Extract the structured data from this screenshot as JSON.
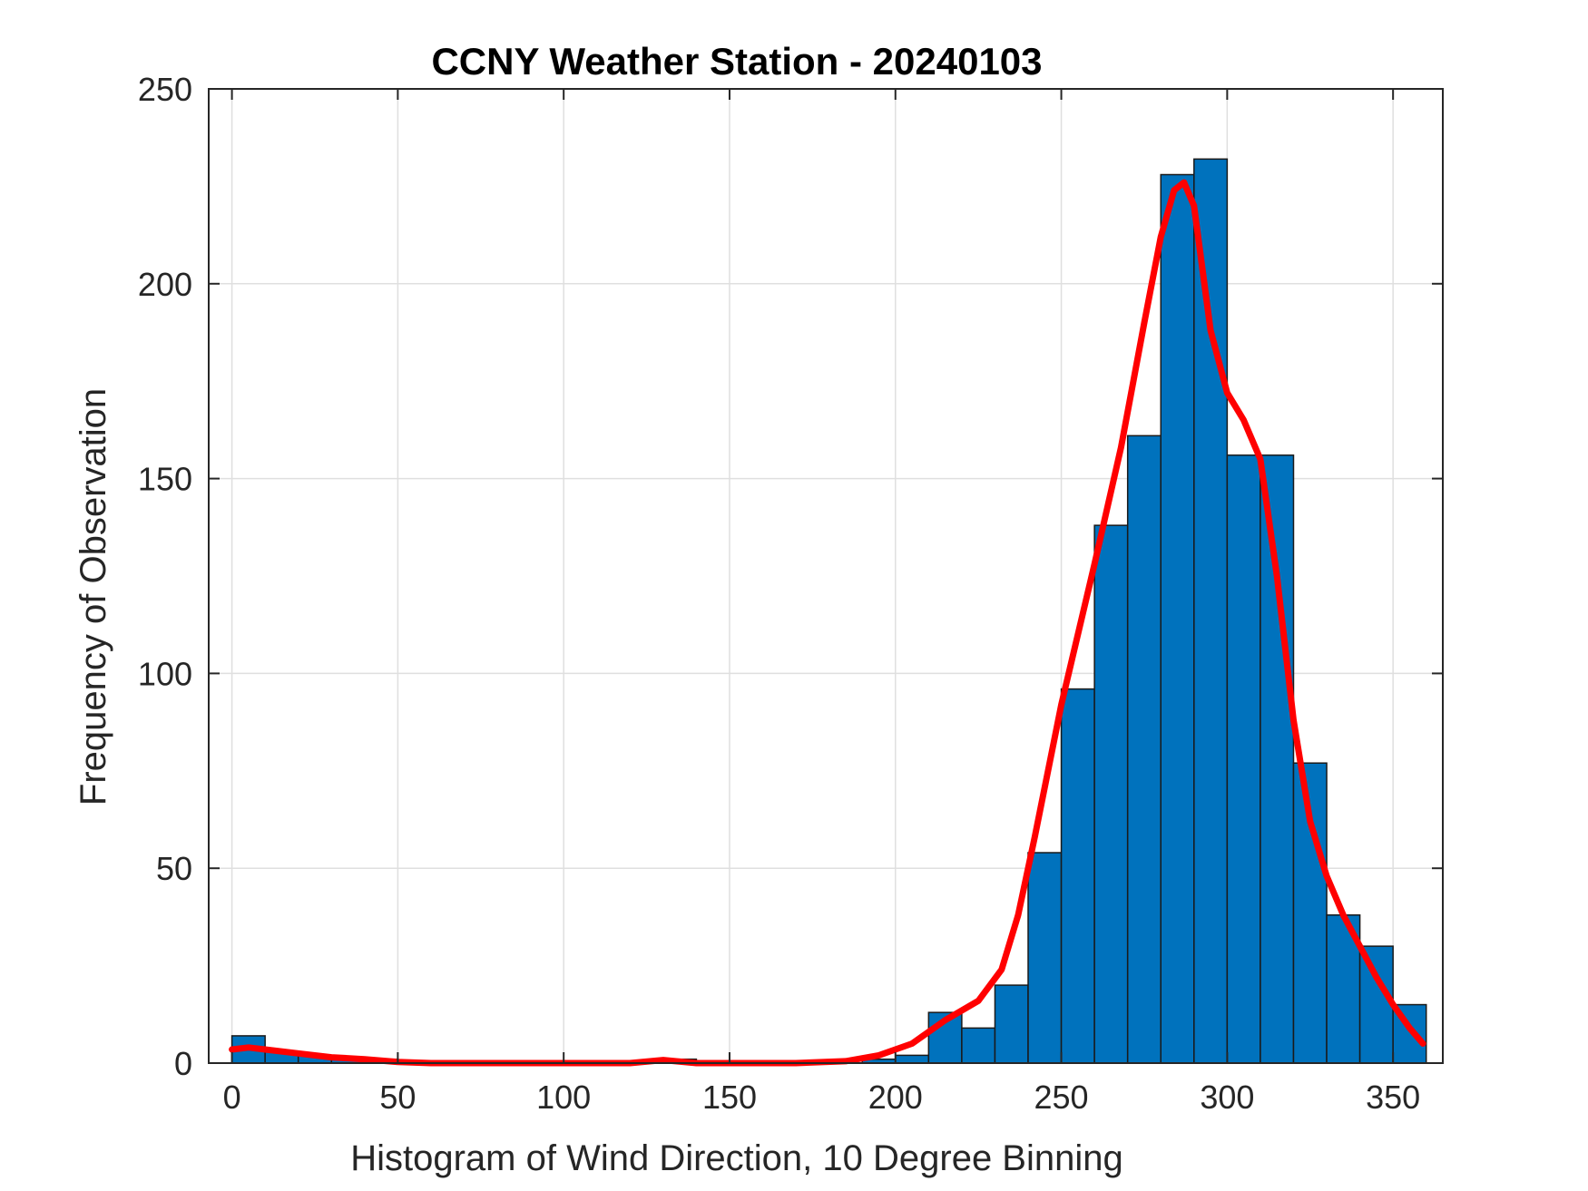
{
  "chart_data": {
    "type": "bar",
    "title": "CCNY Weather Station - 20240103",
    "xlabel": "Histogram of Wind Direction, 10 Degree Binning",
    "ylabel": "Frequency of Observation",
    "xlim": [
      -7,
      365
    ],
    "ylim": [
      0,
      250
    ],
    "grid": true,
    "xticks": [
      0,
      50,
      100,
      150,
      200,
      250,
      300,
      350
    ],
    "yticks": [
      0,
      50,
      100,
      150,
      200,
      250
    ],
    "bin_width": 10,
    "bins": [
      {
        "start": 0,
        "count": 7
      },
      {
        "start": 10,
        "count": 3
      },
      {
        "start": 20,
        "count": 2
      },
      {
        "start": 30,
        "count": 1
      },
      {
        "start": 40,
        "count": 1
      },
      {
        "start": 50,
        "count": 0
      },
      {
        "start": 60,
        "count": 0
      },
      {
        "start": 70,
        "count": 0
      },
      {
        "start": 80,
        "count": 0
      },
      {
        "start": 90,
        "count": 0
      },
      {
        "start": 100,
        "count": 0
      },
      {
        "start": 110,
        "count": 0
      },
      {
        "start": 120,
        "count": 0
      },
      {
        "start": 130,
        "count": 1
      },
      {
        "start": 140,
        "count": 0
      },
      {
        "start": 150,
        "count": 0
      },
      {
        "start": 160,
        "count": 0
      },
      {
        "start": 170,
        "count": 0
      },
      {
        "start": 180,
        "count": 0
      },
      {
        "start": 190,
        "count": 1
      },
      {
        "start": 200,
        "count": 2
      },
      {
        "start": 210,
        "count": 13
      },
      {
        "start": 220,
        "count": 9
      },
      {
        "start": 230,
        "count": 20
      },
      {
        "start": 240,
        "count": 54
      },
      {
        "start": 250,
        "count": 96
      },
      {
        "start": 260,
        "count": 138
      },
      {
        "start": 270,
        "count": 161
      },
      {
        "start": 280,
        "count": 228
      },
      {
        "start": 290,
        "count": 232
      },
      {
        "start": 300,
        "count": 156
      },
      {
        "start": 310,
        "count": 156
      },
      {
        "start": 320,
        "count": 77
      },
      {
        "start": 330,
        "count": 38
      },
      {
        "start": 340,
        "count": 30
      },
      {
        "start": 350,
        "count": 15
      }
    ],
    "curve": {
      "x": [
        0,
        5,
        10,
        20,
        30,
        40,
        50,
        60,
        80,
        100,
        120,
        130,
        140,
        150,
        170,
        185,
        195,
        205,
        215,
        225,
        232,
        237,
        242,
        250,
        260,
        268,
        275,
        280,
        284,
        287,
        290,
        295,
        300,
        305,
        310,
        315,
        320,
        325,
        330,
        335,
        340,
        345,
        350,
        355,
        359
      ],
      "y": [
        3.5,
        4,
        3.5,
        2.5,
        1.5,
        1,
        0.3,
        0,
        0,
        0,
        0,
        0.8,
        0,
        0,
        0,
        0.5,
        2,
        5,
        11,
        16,
        24,
        38,
        58,
        92,
        128,
        158,
        190,
        212,
        224,
        226,
        220,
        188,
        172,
        165,
        155,
        125,
        88,
        62,
        48,
        38,
        30,
        22,
        15,
        9,
        5
      ]
    },
    "colors": {
      "bars": "#0072bd",
      "curve": "#ff0000"
    }
  }
}
